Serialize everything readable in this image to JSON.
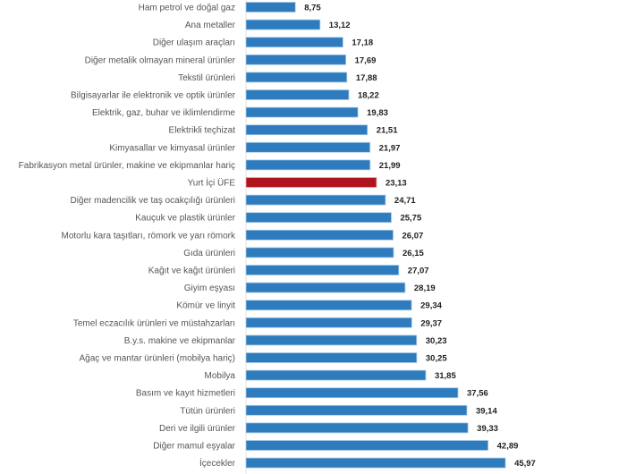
{
  "chart_data": {
    "type": "bar",
    "orientation": "horizontal",
    "title": "",
    "xlabel": "",
    "ylabel": "",
    "xlim": [
      0,
      46
    ],
    "grid": false,
    "colors": {
      "default": "#2e7bbd",
      "highlight": "#b0141c"
    },
    "highlight_category": "Yurt İçi ÜFE",
    "categories": [
      "Ham petrol ve doğal gaz",
      "Ana metaller",
      "Diğer ulaşım araçları",
      "Diğer metalik olmayan mineral ürünler",
      "Tekstil ürünleri",
      "Bilgisayarlar ile elektronik ve optik ürünler",
      "Elektrik, gaz, buhar ve iklimlendirme",
      "Elektrikli teçhizat",
      "Kimyasallar ve kimyasal ürünler",
      "Fabrikasyon metal ürünler, makine ve ekipmanlar hariç",
      "Yurt İçi ÜFE",
      "Diğer madencilik ve taş ocakçılığı ürünleri",
      "Kauçuk ve plastik ürünler",
      "Motorlu kara taşıtları, römork ve yarı römork",
      "Gıda ürünleri",
      "Kağıt ve kağıt ürünleri",
      "Giyim eşyası",
      "Kömür ve linyit",
      "Temel eczacılık ürünleri ve müstahzarları",
      "B.y.s. makine ve ekipmanlar",
      "Ağaç ve mantar ürünleri (mobilya hariç)",
      "Mobilya",
      "Basım ve kayıt hizmetleri",
      "Tütün ürünleri",
      "Deri ve ilgili ürünler",
      "Diğer mamul eşyalar",
      "İçecekler"
    ],
    "values": [
      8.75,
      13.12,
      17.18,
      17.69,
      17.88,
      18.22,
      19.83,
      21.51,
      21.97,
      21.99,
      23.13,
      24.71,
      25.75,
      26.07,
      26.15,
      27.07,
      28.19,
      29.34,
      29.37,
      30.23,
      30.25,
      31.85,
      37.56,
      39.14,
      39.33,
      42.89,
      45.97
    ],
    "value_labels": [
      "8,75",
      "13,12",
      "17,18",
      "17,69",
      "17,88",
      "18,22",
      "19,83",
      "21,51",
      "21,97",
      "21,99",
      "23,13",
      "24,71",
      "25,75",
      "26,07",
      "26,15",
      "27,07",
      "28,19",
      "29,34",
      "29,37",
      "30,23",
      "30,25",
      "31,85",
      "37,56",
      "39,14",
      "39,33",
      "42,89",
      "45,97"
    ]
  }
}
